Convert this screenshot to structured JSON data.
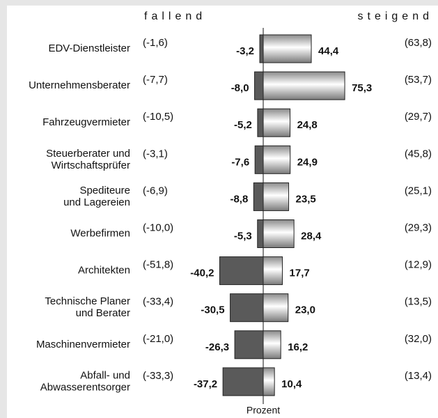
{
  "chart_data": {
    "type": "diverging-bar",
    "x_label": "Prozent",
    "categories": [
      [
        "EDV-Dienstleister"
      ],
      [
        "Unternehmensberater"
      ],
      [
        "Fahrzeugvermieter"
      ],
      [
        "Steuerberater und",
        "Wirtschaftsprüfer"
      ],
      [
        "Spediteure",
        "und Lagereien"
      ],
      [
        "Werbefirmen"
      ],
      [
        "Architekten"
      ],
      [
        "Technische Planer",
        "und Berater"
      ],
      [
        "Maschinenvermieter"
      ],
      [
        "Abfall- und",
        "Abwasserentsorger"
      ]
    ],
    "series": [
      {
        "name": "fallend",
        "color": "#5a5a5a",
        "values": [
          -3.2,
          -8.0,
          -5.2,
          -7.6,
          -8.8,
          -5.3,
          -40.2,
          -30.5,
          -26.3,
          -37.2
        ],
        "value_labels": [
          "-3,2",
          "-8,0",
          "-5,2",
          "-7,6",
          "-8,8",
          "-5,3",
          "-40,2",
          "-30,5",
          "-26,3",
          "-37,2"
        ],
        "previous": [
          -1.6,
          -7.7,
          -10.5,
          -3.1,
          -6.9,
          -10.0,
          -51.8,
          -33.4,
          -21.0,
          -33.3
        ],
        "previous_labels": [
          "(-1,6)",
          "(-7,7)",
          "(-10,5)",
          "(-3,1)",
          "(-6,9)",
          "(-10,0)",
          "(-51,8)",
          "(-33,4)",
          "(-21,0)",
          "(-33,3)"
        ]
      },
      {
        "name": "steigend",
        "color": "#8c8c8c",
        "values": [
          44.4,
          75.3,
          24.8,
          24.9,
          23.5,
          28.4,
          17.7,
          23.0,
          16.2,
          10.4
        ],
        "value_labels": [
          "44,4",
          "75,3",
          "24,8",
          "24,9",
          "23,5",
          "28,4",
          "17,7",
          "23,0",
          "16,2",
          "10,4"
        ],
        "previous": [
          63.8,
          53.7,
          29.7,
          45.8,
          25.1,
          29.3,
          12.9,
          13.5,
          32.0,
          13.4
        ],
        "previous_labels": [
          "(63,8)",
          "(53,7)",
          "(29,7)",
          "(45,8)",
          "(25,1)",
          "(29,3)",
          "(12,9)",
          "(13,5)",
          "(32,0)",
          "(13,4)"
        ]
      }
    ]
  }
}
